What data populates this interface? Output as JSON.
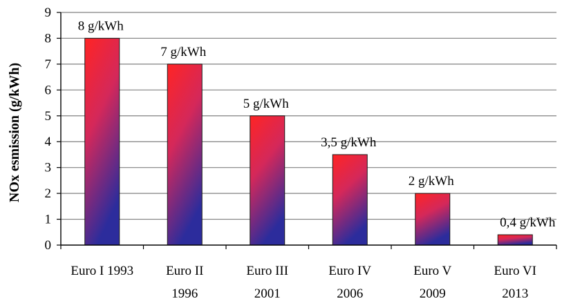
{
  "chart_data": {
    "type": "bar",
    "categories": [
      [
        "Euro I 1993"
      ],
      [
        "Euro II",
        "1996"
      ],
      [
        "Euro III",
        "2001"
      ],
      [
        "Euro IV",
        "2006"
      ],
      [
        "Euro V",
        "2009"
      ],
      [
        "Euro VI",
        "2013"
      ]
    ],
    "values": [
      8,
      7,
      5,
      3.5,
      2,
      0.4
    ],
    "data_labels": [
      "8 g/kWh",
      "7 g/kWh",
      "5 g/kWh",
      "3,5 g/kWh",
      "2 g/kWh",
      "0,4 g/kWh"
    ],
    "title": "",
    "xlabel": "",
    "ylabel": "NOx esmission (g/kWh)",
    "ylim": [
      0,
      9
    ],
    "yticks": [
      0,
      1,
      2,
      3,
      4,
      5,
      6,
      7,
      8,
      9
    ],
    "grid": true,
    "legend": "none",
    "colors": {
      "bar_top": "#ff2a2a",
      "bar_bottom": "#2a2a9a",
      "bar_mid": "#c02a6a",
      "grid": "#808080",
      "axis": "#000000"
    }
  }
}
